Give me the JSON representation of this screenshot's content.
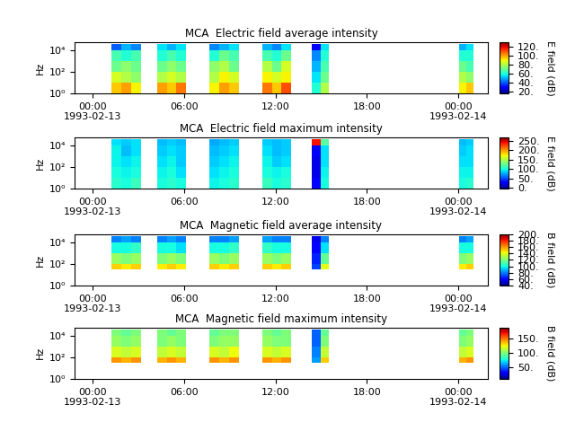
{
  "chart_data": [
    {
      "type": "heatmap",
      "title": "MCA  Electric field average intensity",
      "y_label": "Hz",
      "colorbar_label": "E field (dB)",
      "log": "y",
      "xlim": [
        "1993-02-12T22:50",
        "1993-02-14T01:55"
      ],
      "xticks": [
        {
          "value": "1993-02-13T00:00",
          "label": "00:00\n1993-02-13"
        },
        {
          "value": "1993-02-13T06:00",
          "label": "06:00"
        },
        {
          "value": "1993-02-13T12:00",
          "label": "12:00"
        },
        {
          "value": "1993-02-13T18:00",
          "label": "18:00"
        },
        {
          "value": "1993-02-14T00:00",
          "label": "00:00\n1993-02-14"
        }
      ],
      "ylim": [
        1,
        60000
      ],
      "yticks": [
        {
          "value": 1,
          "label": "10⁰"
        },
        {
          "value": 100,
          "label": "10²"
        },
        {
          "value": 10000,
          "label": "10⁴"
        }
      ],
      "freq_edges": [
        1,
        10,
        100,
        1000,
        10000,
        40000
      ],
      "color_range": [
        15,
        130
      ],
      "color_ticks": [
        {
          "value": 20,
          "label": "20."
        },
        {
          "value": 40,
          "label": "40."
        },
        {
          "value": 60,
          "label": "60."
        },
        {
          "value": 80,
          "label": "80."
        },
        {
          "value": 100,
          "label": "100."
        },
        {
          "value": 120,
          "label": "120."
        }
      ],
      "blocks": [
        {
          "start": "1993-02-13T01:15",
          "end": "1993-02-13T03:10",
          "cells": [
            [
              95,
              85,
              70,
              65,
              40
            ],
            [
              100,
              80,
              75,
              60,
              50
            ],
            [
              90,
              75,
              70,
              65,
              45
            ]
          ]
        },
        {
          "start": "1993-02-13T04:15",
          "end": "1993-02-13T06:08",
          "cells": [
            [
              100,
              80,
              70,
              60,
              55
            ],
            [
              95,
              85,
              75,
              65,
              50
            ],
            [
              105,
              80,
              70,
              60,
              55
            ]
          ]
        },
        {
          "start": "1993-02-13T07:40",
          "end": "1993-02-13T09:36",
          "cells": [
            [
              90,
              80,
              75,
              60,
              45
            ],
            [
              100,
              90,
              80,
              70,
              50
            ],
            [
              95,
              85,
              70,
              65,
              55
            ]
          ]
        },
        {
          "start": "1993-02-13T11:08",
          "end": "1993-02-13T13:02",
          "cells": [
            [
              105,
              90,
              80,
              65,
              50
            ],
            [
              95,
              85,
              70,
              60,
              45
            ],
            [
              110,
              90,
              85,
              70,
              55
            ]
          ]
        },
        {
          "start": "1993-02-13T14:23",
          "end": "1993-02-13T15:30",
          "cells": [
            [
              60,
              55,
              50,
              45,
              30
            ],
            [
              80,
              70,
              65,
              60,
              55
            ]
          ]
        },
        {
          "start": "1993-02-14T00:04",
          "end": "1993-02-14T01:00",
          "cells": [
            [
              90,
              80,
              70,
              60,
              50
            ],
            [
              95,
              75,
              65,
              60,
              55
            ]
          ]
        }
      ]
    },
    {
      "type": "heatmap",
      "title": "MCA  Electric field maximum intensity",
      "y_label": "Hz",
      "colorbar_label": "E field (dB)",
      "log": "y",
      "xlim": [
        "1993-02-12T22:50",
        "1993-02-14T01:55"
      ],
      "xticks": [
        {
          "value": "1993-02-13T00:00",
          "label": "00:00\n1993-02-13"
        },
        {
          "value": "1993-02-13T06:00",
          "label": "06:00"
        },
        {
          "value": "1993-02-13T12:00",
          "label": "12:00"
        },
        {
          "value": "1993-02-13T18:00",
          "label": "18:00"
        },
        {
          "value": "1993-02-14T00:00",
          "label": "00:00\n1993-02-14"
        }
      ],
      "ylim": [
        1,
        60000
      ],
      "yticks": [
        {
          "value": 1,
          "label": "10⁰"
        },
        {
          "value": 100,
          "label": "10²"
        },
        {
          "value": 10000,
          "label": "10⁴"
        }
      ],
      "freq_edges": [
        1,
        10,
        100,
        1000,
        10000,
        40000
      ],
      "color_range": [
        -5,
        270
      ],
      "color_ticks": [
        {
          "value": 0,
          "label": "0."
        },
        {
          "value": 50,
          "label": "50."
        },
        {
          "value": 100,
          "label": "100."
        },
        {
          "value": 150,
          "label": "150."
        },
        {
          "value": 200,
          "label": "200."
        },
        {
          "value": 250,
          "label": "250."
        }
      ],
      "blocks": [
        {
          "start": "1993-02-13T01:15",
          "end": "1993-02-13T03:10",
          "cells": [
            [
              105,
              100,
              95,
              95,
              90
            ],
            [
              100,
              95,
              90,
              80,
              85
            ],
            [
              110,
              100,
              95,
              90,
              90
            ]
          ]
        },
        {
          "start": "1993-02-13T04:15",
          "end": "1993-02-13T06:08",
          "cells": [
            [
              100,
              95,
              90,
              85,
              80
            ],
            [
              105,
              100,
              95,
              90,
              85
            ],
            [
              100,
              90,
              85,
              85,
              80
            ]
          ]
        },
        {
          "start": "1993-02-13T07:40",
          "end": "1993-02-13T09:36",
          "cells": [
            [
              95,
              90,
              85,
              80,
              75
            ],
            [
              100,
              95,
              90,
              85,
              80
            ],
            [
              105,
              100,
              95,
              90,
              85
            ]
          ]
        },
        {
          "start": "1993-02-13T11:08",
          "end": "1993-02-13T13:02",
          "cells": [
            [
              110,
              100,
              95,
              90,
              85
            ],
            [
              100,
              95,
              85,
              80,
              80
            ],
            [
              105,
              100,
              90,
              85,
              85
            ]
          ]
        },
        {
          "start": "1993-02-13T14:23",
          "end": "1993-02-13T15:30",
          "cells": [
            [
              30,
              20,
              20,
              25,
              240
            ],
            [
              100,
              95,
              90,
              90,
              120
            ]
          ]
        },
        {
          "start": "1993-02-14T00:04",
          "end": "1993-02-14T01:00",
          "cells": [
            [
              100,
              95,
              90,
              85,
              80
            ],
            [
              105,
              95,
              90,
              90,
              85
            ]
          ]
        }
      ]
    },
    {
      "type": "heatmap",
      "title": "MCA  Magnetic field average intensity",
      "y_label": "Hz",
      "colorbar_label": "B field (dB)",
      "log": "y",
      "xlim": [
        "1993-02-12T22:50",
        "1993-02-14T01:55"
      ],
      "xticks": [
        {
          "value": "1993-02-13T00:00",
          "label": "00:00\n1993-02-13"
        },
        {
          "value": "1993-02-13T06:00",
          "label": "06:00"
        },
        {
          "value": "1993-02-13T12:00",
          "label": "12:00"
        },
        {
          "value": "1993-02-13T18:00",
          "label": "18:00"
        },
        {
          "value": "1993-02-14T00:00",
          "label": "00:00\n1993-02-14"
        }
      ],
      "ylim": [
        1,
        60000
      ],
      "yticks": [
        {
          "value": 1,
          "label": "10⁰"
        },
        {
          "value": 100,
          "label": "10²"
        },
        {
          "value": 10000,
          "label": "10⁴"
        }
      ],
      "freq_edges": [
        30,
        100,
        1000,
        10000,
        40000
      ],
      "color_range": [
        40,
        200
      ],
      "color_ticks": [
        {
          "value": 40,
          "label": "40."
        },
        {
          "value": 60,
          "label": "60."
        },
        {
          "value": 80,
          "label": "80."
        },
        {
          "value": 100,
          "label": "100."
        },
        {
          "value": 120,
          "label": "120."
        },
        {
          "value": 140,
          "label": "140."
        },
        {
          "value": 160,
          "label": "160."
        },
        {
          "value": 180,
          "label": "180."
        },
        {
          "value": 200,
          "label": "200."
        }
      ],
      "blocks": [
        {
          "start": "1993-02-13T01:15",
          "end": "1993-02-13T03:10",
          "cells": [
            [
              150,
              125,
              100,
              80
            ],
            [
              145,
              120,
              100,
              85
            ],
            [
              150,
              125,
              105,
              80
            ]
          ]
        },
        {
          "start": "1993-02-13T04:15",
          "end": "1993-02-13T06:08",
          "cells": [
            [
              145,
              120,
              100,
              80
            ],
            [
              150,
              125,
              100,
              85
            ],
            [
              145,
              120,
              95,
              80
            ]
          ]
        },
        {
          "start": "1993-02-13T07:40",
          "end": "1993-02-13T09:36",
          "cells": [
            [
              150,
              125,
              100,
              80
            ],
            [
              145,
              120,
              100,
              80
            ],
            [
              150,
              125,
              105,
              85
            ]
          ]
        },
        {
          "start": "1993-02-13T11:08",
          "end": "1993-02-13T13:02",
          "cells": [
            [
              150,
              125,
              105,
              85
            ],
            [
              145,
              120,
              100,
              80
            ],
            [
              150,
              125,
              100,
              80
            ]
          ]
        },
        {
          "start": "1993-02-13T14:23",
          "end": "1993-02-13T15:30",
          "cells": [
            [
              70,
              65,
              60,
              55
            ],
            [
              140,
              115,
              95,
              80
            ]
          ]
        },
        {
          "start": "1993-02-14T00:04",
          "end": "1993-02-14T01:00",
          "cells": [
            [
              145,
              120,
              100,
              80
            ],
            [
              150,
              125,
              100,
              85
            ]
          ]
        }
      ]
    },
    {
      "type": "heatmap",
      "title": "MCA  Magnetic field maximum intensity",
      "y_label": "Hz",
      "colorbar_label": "B field (dB)",
      "log": "y",
      "xlim": [
        "1993-02-12T22:50",
        "1993-02-14T01:55"
      ],
      "xticks": [
        {
          "value": "1993-02-13T00:00",
          "label": "00:00\n1993-02-13"
        },
        {
          "value": "1993-02-13T06:00",
          "label": "06:00"
        },
        {
          "value": "1993-02-13T12:00",
          "label": "12:00"
        },
        {
          "value": "1993-02-13T18:00",
          "label": "18:00"
        },
        {
          "value": "1993-02-14T00:00",
          "label": "00:00\n1993-02-14"
        }
      ],
      "ylim": [
        1,
        60000
      ],
      "yticks": [
        {
          "value": 1,
          "label": "10⁰"
        },
        {
          "value": 100,
          "label": "10²"
        },
        {
          "value": 10000,
          "label": "10⁴"
        }
      ],
      "freq_edges": [
        30,
        100,
        1000,
        10000,
        40000
      ],
      "color_range": [
        10,
        190
      ],
      "color_ticks": [
        {
          "value": 50,
          "label": "50."
        },
        {
          "value": 100,
          "label": "100."
        },
        {
          "value": 150,
          "label": "150."
        }
      ],
      "blocks": [
        {
          "start": "1993-02-13T01:15",
          "end": "1993-02-13T03:10",
          "cells": [
            [
              145,
              120,
              105,
              100
            ],
            [
              140,
              115,
              100,
              95
            ],
            [
              145,
              120,
              105,
              100
            ]
          ]
        },
        {
          "start": "1993-02-13T04:15",
          "end": "1993-02-13T06:08",
          "cells": [
            [
              140,
              115,
              100,
              100
            ],
            [
              145,
              120,
              105,
              95
            ],
            [
              140,
              115,
              100,
              100
            ]
          ]
        },
        {
          "start": "1993-02-13T07:40",
          "end": "1993-02-13T09:36",
          "cells": [
            [
              145,
              120,
              100,
              95
            ],
            [
              140,
              115,
              105,
              100
            ],
            [
              145,
              125,
              105,
              100
            ]
          ]
        },
        {
          "start": "1993-02-13T11:08",
          "end": "1993-02-13T13:02",
          "cells": [
            [
              145,
              120,
              105,
              100
            ],
            [
              140,
              115,
              100,
              95
            ],
            [
              145,
              120,
              100,
              100
            ]
          ]
        },
        {
          "start": "1993-02-13T14:23",
          "end": "1993-02-13T15:30",
          "cells": [
            [
              60,
              55,
              50,
              50
            ],
            [
              135,
              115,
              100,
              95
            ]
          ]
        },
        {
          "start": "1993-02-14T00:04",
          "end": "1993-02-14T01:00",
          "cells": [
            [
              140,
              115,
              100,
              95
            ],
            [
              145,
              120,
              105,
              100
            ]
          ]
        }
      ]
    }
  ]
}
